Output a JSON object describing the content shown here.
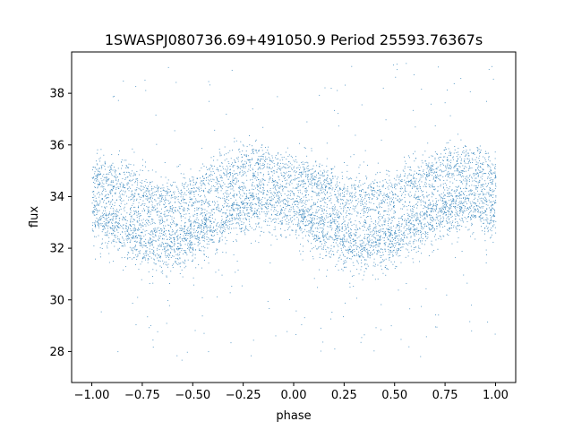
{
  "chart_data": {
    "type": "scatter",
    "title": "1SWASPJ080736.69+491050.9 Period 25593.76367s",
    "xlabel": "phase",
    "ylabel": "flux",
    "xlim": [
      -1.1,
      1.1
    ],
    "ylim": [
      26.8,
      39.6
    ],
    "xticks": [
      -1.0,
      -0.75,
      -0.5,
      -0.25,
      0.0,
      0.25,
      0.5,
      0.75,
      1.0
    ],
    "xtick_labels": [
      "−1.00",
      "−0.75",
      "−0.50",
      "−0.25",
      "0.00",
      "0.25",
      "0.50",
      "0.75",
      "1.00"
    ],
    "yticks": [
      28,
      30,
      32,
      34,
      36,
      38
    ],
    "ytick_labels": [
      "28",
      "30",
      "32",
      "34",
      "36",
      "38"
    ],
    "grid": false,
    "legend": "none",
    "point_color": "#1f77b4",
    "series": [
      {
        "x_range": [
          -1.0,
          1.0
        ],
        "curve": {
          "phase": [
            -1.0,
            -0.85,
            -0.7,
            -0.55,
            -0.4,
            -0.25,
            -0.15,
            0.0,
            0.15,
            0.3,
            0.45,
            0.6,
            0.75,
            0.85,
            1.0
          ],
          "lower_mean": [
            33.5,
            32.8,
            32.2,
            32.3,
            32.9,
            33.6,
            33.8,
            33.5,
            32.8,
            32.2,
            32.3,
            32.9,
            33.6,
            33.8,
            33.5
          ],
          "upper_mean": [
            34.8,
            34.5,
            33.9,
            34.0,
            34.6,
            35.2,
            35.3,
            34.8,
            34.5,
            33.9,
            34.0,
            34.6,
            35.2,
            35.3,
            34.8
          ]
        },
        "outlier_range": [
          27.5,
          39.2
        ]
      }
    ]
  }
}
